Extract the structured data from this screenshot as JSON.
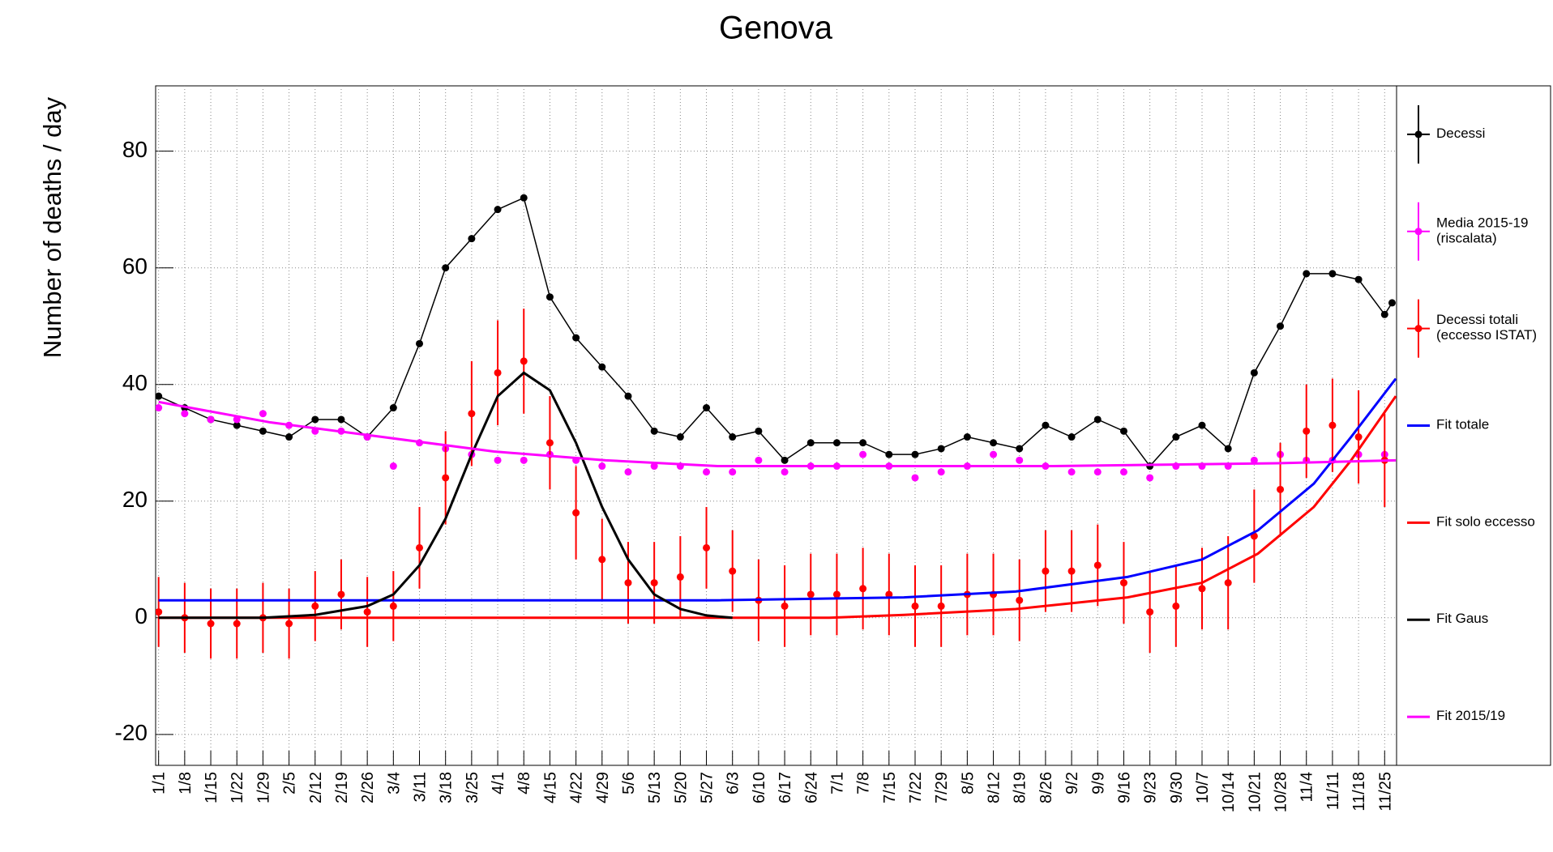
{
  "chart_data": {
    "type": "line",
    "title": "Genova",
    "y_label": "Number of deaths / day",
    "xlim": [
      -0.8,
      332.2
    ],
    "ylim": [
      -25.3,
      91.2
    ],
    "yticks": [
      -20,
      0,
      20,
      40,
      60,
      80
    ],
    "xticks": [
      {
        "value": 0,
        "label": "1/1"
      },
      {
        "value": 7,
        "label": "1/8"
      },
      {
        "value": 14,
        "label": "1/15"
      },
      {
        "value": 21,
        "label": "1/22"
      },
      {
        "value": 28,
        "label": "1/29"
      },
      {
        "value": 35,
        "label": "2/5"
      },
      {
        "value": 42,
        "label": "2/12"
      },
      {
        "value": 49,
        "label": "2/19"
      },
      {
        "value": 56,
        "label": "2/26"
      },
      {
        "value": 63,
        "label": "3/4"
      },
      {
        "value": 70,
        "label": "3/11"
      },
      {
        "value": 77,
        "label": "3/18"
      },
      {
        "value": 84,
        "label": "3/25"
      },
      {
        "value": 91,
        "label": "4/1"
      },
      {
        "value": 98,
        "label": "4/8"
      },
      {
        "value": 105,
        "label": "4/15"
      },
      {
        "value": 112,
        "label": "4/22"
      },
      {
        "value": 119,
        "label": "4/29"
      },
      {
        "value": 126,
        "label": "5/6"
      },
      {
        "value": 133,
        "label": "5/13"
      },
      {
        "value": 140,
        "label": "5/20"
      },
      {
        "value": 147,
        "label": "5/27"
      },
      {
        "value": 154,
        "label": "6/3"
      },
      {
        "value": 161,
        "label": "6/10"
      },
      {
        "value": 168,
        "label": "6/17"
      },
      {
        "value": 175,
        "label": "6/24"
      },
      {
        "value": 182,
        "label": "7/1"
      },
      {
        "value": 189,
        "label": "7/8"
      },
      {
        "value": 196,
        "label": "7/15"
      },
      {
        "value": 203,
        "label": "7/22"
      },
      {
        "value": 210,
        "label": "7/29"
      },
      {
        "value": 217,
        "label": "8/5"
      },
      {
        "value": 224,
        "label": "8/12"
      },
      {
        "value": 231,
        "label": "8/19"
      },
      {
        "value": 238,
        "label": "8/26"
      },
      {
        "value": 245,
        "label": "9/2"
      },
      {
        "value": 252,
        "label": "9/9"
      },
      {
        "value": 259,
        "label": "9/16"
      },
      {
        "value": 266,
        "label": "9/23"
      },
      {
        "value": 273,
        "label": "9/30"
      },
      {
        "value": 280,
        "label": "10/7"
      },
      {
        "value": 287,
        "label": "10/14"
      },
      {
        "value": 294,
        "label": "10/21"
      },
      {
        "value": 301,
        "label": "10/28"
      },
      {
        "value": 308,
        "label": "11/4"
      },
      {
        "value": 315,
        "label": "11/11"
      },
      {
        "value": 322,
        "label": "11/18"
      },
      {
        "value": 329,
        "label": "11/25"
      }
    ],
    "grid": true,
    "legend": "right",
    "series": [
      {
        "name": "Decessi",
        "color": "#000000",
        "style": "markers-line",
        "x": [
          0,
          7,
          14,
          21,
          28,
          35,
          42,
          49,
          56,
          63,
          70,
          77,
          84,
          91,
          98,
          105,
          112,
          119,
          126,
          133,
          140,
          147,
          154,
          161,
          168,
          175,
          182,
          189,
          196,
          203,
          210,
          217,
          224,
          231,
          238,
          245,
          252,
          259,
          266,
          273,
          280,
          287,
          294,
          301,
          308,
          315,
          322,
          329,
          331
        ],
        "values": [
          38,
          36,
          34,
          33,
          32,
          31,
          34,
          34,
          31,
          36,
          47,
          60,
          65,
          70,
          72,
          55,
          48,
          43,
          38,
          32,
          31,
          36,
          31,
          32,
          27,
          30,
          30,
          30,
          28,
          28,
          29,
          31,
          30,
          29,
          33,
          31,
          34,
          32,
          26,
          31,
          33,
          29,
          42,
          50,
          59,
          59,
          58,
          52,
          54
        ]
      },
      {
        "name": "Media 2015-19 (riscalata)",
        "color": "#ff00ff",
        "style": "markers",
        "x": [
          0,
          7,
          14,
          21,
          28,
          35,
          42,
          49,
          56,
          63,
          70,
          77,
          84,
          91,
          98,
          105,
          112,
          119,
          126,
          133,
          140,
          147,
          154,
          161,
          168,
          175,
          182,
          189,
          196,
          203,
          210,
          217,
          224,
          231,
          238,
          245,
          252,
          259,
          266,
          273,
          280,
          287,
          294,
          301,
          308,
          315,
          322,
          329
        ],
        "values": [
          36,
          35,
          34,
          34,
          35,
          33,
          32,
          32,
          31,
          26,
          30,
          29,
          28,
          27,
          27,
          28,
          27,
          26,
          25,
          26,
          26,
          25,
          25,
          27,
          25,
          26,
          26,
          28,
          26,
          24,
          25,
          26,
          28,
          27,
          26,
          25,
          25,
          25,
          24,
          26,
          26,
          26,
          27,
          28,
          27,
          27,
          28,
          28
        ]
      },
      {
        "name": "Decessi totali (eccesso ISTAT)",
        "color": "#ff0000",
        "style": "markers-errors",
        "x": [
          0,
          7,
          14,
          21,
          28,
          35,
          42,
          49,
          56,
          63,
          70,
          77,
          84,
          91,
          98,
          105,
          112,
          119,
          126,
          133,
          140,
          147,
          154,
          161,
          168,
          175,
          182,
          189,
          196,
          203,
          210,
          217,
          224,
          231,
          238,
          245,
          252,
          259,
          266,
          273,
          280,
          287,
          294,
          301,
          308,
          315,
          322,
          329
        ],
        "values": [
          1,
          0,
          -1,
          -1,
          0,
          -1,
          2,
          4,
          1,
          2,
          12,
          24,
          35,
          42,
          44,
          30,
          18,
          10,
          6,
          6,
          7,
          12,
          8,
          3,
          2,
          4,
          4,
          5,
          4,
          2,
          2,
          4,
          4,
          3,
          8,
          8,
          9,
          6,
          1,
          2,
          5,
          6,
          14,
          22,
          32,
          33,
          31,
          27
        ],
        "errors": [
          6,
          6,
          6,
          6,
          6,
          6,
          6,
          6,
          6,
          6,
          7,
          8,
          9,
          9,
          9,
          8,
          8,
          7,
          7,
          7,
          7,
          7,
          7,
          7,
          7,
          7,
          7,
          7,
          7,
          7,
          7,
          7,
          7,
          7,
          7,
          7,
          7,
          7,
          7,
          7,
          7,
          8,
          8,
          8,
          8,
          8,
          8,
          8
        ]
      },
      {
        "name": "Fit totale",
        "color": "#0000ff",
        "style": "line",
        "x": [
          0,
          50,
          100,
          150,
          200,
          230,
          260,
          280,
          295,
          310,
          320,
          332
        ],
        "values": [
          3,
          3,
          3,
          3,
          3.5,
          4.5,
          7,
          10,
          15,
          23,
          31,
          41
        ]
      },
      {
        "name": "Fit solo eccesso",
        "color": "#ff0000",
        "style": "line",
        "x": [
          0,
          60,
          120,
          180,
          200,
          230,
          260,
          280,
          295,
          310,
          320,
          332
        ],
        "values": [
          0,
          0,
          0,
          0,
          0.5,
          1.5,
          3.5,
          6,
          11,
          19,
          27,
          38
        ]
      },
      {
        "name": "Fit Gaus",
        "color": "#000000",
        "style": "line",
        "x": [
          0,
          28,
          42,
          56,
          63,
          70,
          77,
          84,
          91,
          98,
          105,
          112,
          119,
          126,
          133,
          140,
          147,
          154
        ],
        "values": [
          0,
          0,
          0.5,
          2,
          4,
          9,
          17,
          28,
          38,
          42,
          39,
          30,
          19,
          10,
          4,
          1.5,
          0.4,
          0
        ]
      },
      {
        "name": "Fit 2015/19",
        "color": "#ff00ff",
        "style": "line",
        "x": [
          0,
          30,
          60,
          90,
          120,
          150,
          180,
          240,
          300,
          332
        ],
        "values": [
          37,
          33.5,
          31,
          28.5,
          27,
          26,
          26,
          26,
          26.5,
          27
        ]
      }
    ]
  }
}
